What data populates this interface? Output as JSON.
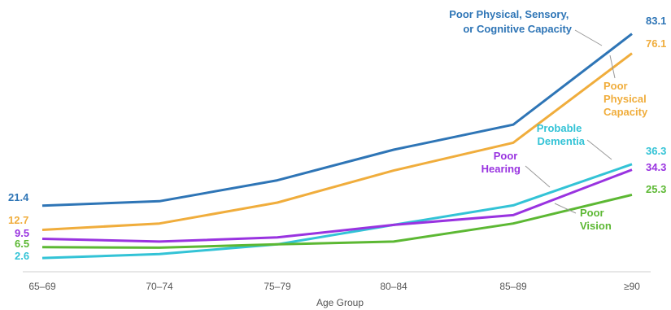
{
  "chart_data": {
    "type": "line",
    "title": "",
    "xlabel": "Age Group",
    "ylabel": "",
    "categories": [
      "65–69",
      "70–74",
      "75–79",
      "80–84",
      "85–89",
      "≥90"
    ],
    "ylim": [
      0,
      90
    ],
    "grid": false,
    "legend": "inline labels",
    "series": [
      {
        "key": "psc",
        "name_lines": [
          "Poor Physical, Sensory,",
          "or Cognitive Capacity"
        ],
        "color": "#2e75b6",
        "values": [
          21.4,
          23.0,
          30.5,
          41.5,
          50.5,
          83.1
        ],
        "start_label": "21.4",
        "end_label": "83.1"
      },
      {
        "key": "phys",
        "name_lines": [
          "Poor",
          "Physical",
          "Capacity"
        ],
        "color": "#f0ad3c",
        "values": [
          12.7,
          15.0,
          22.5,
          34.0,
          44.0,
          76.1
        ],
        "start_label": "12.7",
        "end_label": "76.1"
      },
      {
        "key": "dem",
        "name_lines": [
          "Probable",
          "Dementia"
        ],
        "color": "#33c3d6",
        "values": [
          2.6,
          4.0,
          7.5,
          14.5,
          21.5,
          36.3
        ],
        "start_label": "2.6",
        "end_label": "36.3"
      },
      {
        "key": "hear",
        "name_lines": [
          "Poor",
          "Hearing"
        ],
        "color": "#9933e0",
        "values": [
          9.5,
          8.5,
          10.0,
          14.5,
          18.0,
          34.3
        ],
        "start_label": "9.5",
        "end_label": "34.3"
      },
      {
        "key": "vis",
        "name_lines": [
          "Poor",
          "Vision"
        ],
        "color": "#5cb833",
        "values": [
          6.5,
          6.3,
          7.5,
          8.5,
          15.0,
          25.3
        ],
        "start_label": "6.5",
        "end_label": "25.3"
      }
    ]
  }
}
